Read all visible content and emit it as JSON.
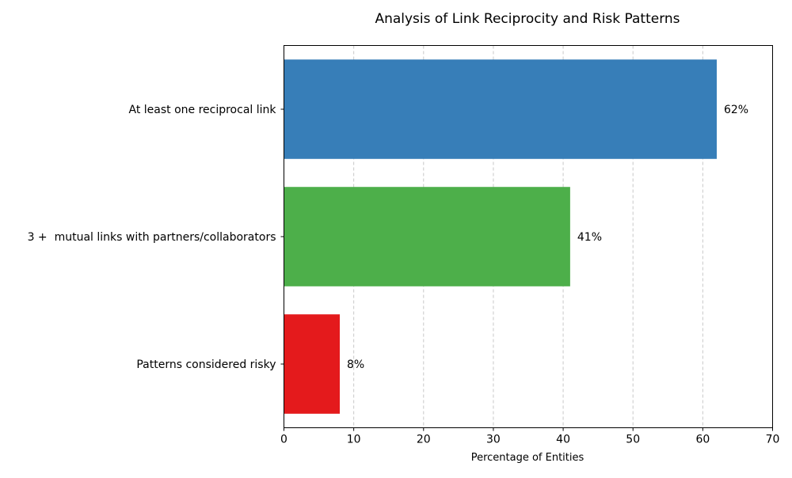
{
  "chart_data": {
    "type": "bar",
    "orientation": "horizontal",
    "title": "Analysis of Link Reciprocity and Risk Patterns",
    "xlabel": "Percentage of Entities",
    "ylabel": "",
    "xlim": [
      0,
      70
    ],
    "xticks": [
      0,
      10,
      20,
      30,
      40,
      50,
      60,
      70
    ],
    "grid": "x-dashed",
    "categories": [
      "At least one reciprocal link",
      "3 +  mutual links with partners/collaborators",
      "Patterns considered risky"
    ],
    "values": [
      62,
      41,
      8
    ],
    "data_labels": [
      "62%",
      "41%",
      "8%"
    ],
    "colors": [
      "#377eb8",
      "#4daf4a",
      "#e41a1c"
    ]
  }
}
